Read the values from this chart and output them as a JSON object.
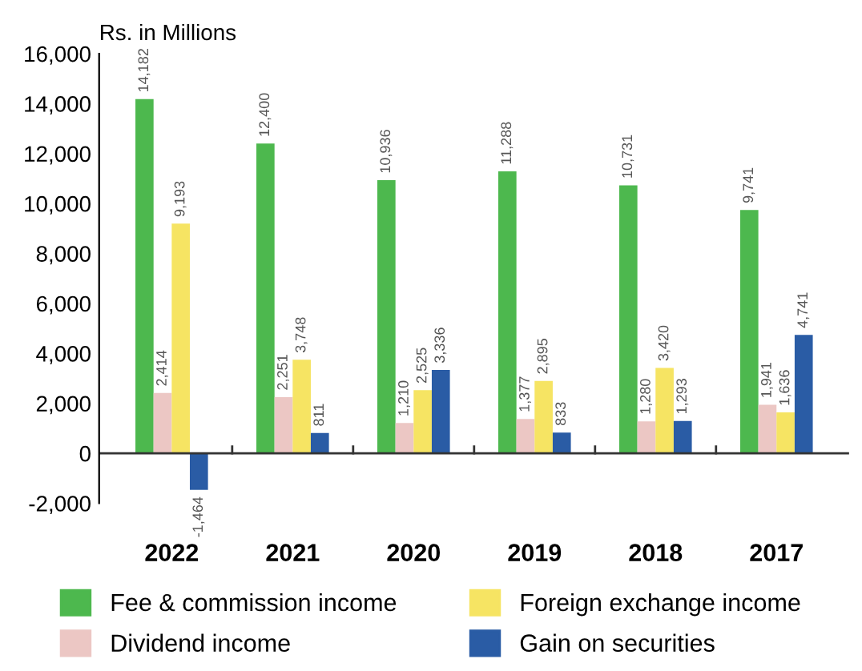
{
  "chart_data": {
    "type": "bar",
    "ylabel": "Rs. in Millions",
    "categories": [
      "2022",
      "2021",
      "2020",
      "2019",
      "2018",
      "2017"
    ],
    "series": [
      {
        "name": "Fee & commission income",
        "color": "#4db84e",
        "values": [
          14182,
          12400,
          10936,
          11288,
          10731,
          9741
        ],
        "value_labels": [
          "14,182",
          "12,400",
          "10,936",
          "11,288",
          "10,731",
          "9,741"
        ]
      },
      {
        "name": "Dividend income",
        "color": "#ecc7c4",
        "values": [
          2414,
          2251,
          1210,
          1377,
          1280,
          1941
        ],
        "value_labels": [
          "2,414",
          "2,251",
          "1,210",
          "1,377",
          "1,280",
          "1,941"
        ]
      },
      {
        "name": "Foreign exchange income",
        "color": "#f6e463",
        "values": [
          9193,
          3748,
          2525,
          2895,
          3420,
          1636
        ],
        "value_labels": [
          "9,193",
          "3,748",
          "2,525",
          "2,895",
          "3,420",
          "1,636"
        ]
      },
      {
        "name": "Gain on securities",
        "color": "#2a5ca5",
        "values": [
          -1464,
          811,
          3336,
          833,
          1293,
          4741
        ],
        "value_labels": [
          "-1,464",
          "811",
          "3,336",
          "833",
          "1,293",
          "4,741"
        ]
      }
    ],
    "ylim": [
      -2000,
      16000
    ],
    "yticks": [
      {
        "value": -2000,
        "label": "-2,000"
      },
      0,
      {
        "value": 2000,
        "label": "2,000"
      },
      {
        "value": 4000,
        "label": "4,000"
      },
      {
        "value": 6000,
        "label": "6,000"
      },
      {
        "value": 8000,
        "label": "8,000"
      },
      {
        "value": 10000,
        "label": "10,000"
      },
      {
        "value": 12000,
        "label": "12,000"
      },
      {
        "value": 14000,
        "label": "14,000"
      },
      {
        "value": 16000,
        "label": "16,000"
      }
    ],
    "ref_lines": [
      {
        "axis": "y",
        "value": 0,
        "color": "#333333"
      }
    ],
    "grid": false,
    "legend": "bottom"
  }
}
